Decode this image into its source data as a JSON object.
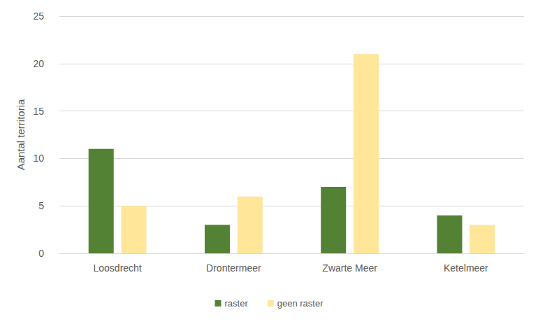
{
  "chart_data": {
    "type": "bar",
    "y_label": "Aantal territoria",
    "categories": [
      "Loosdrecht",
      "Drontermeer",
      "Zwarte Meer",
      "Ketelmeer"
    ],
    "series": [
      {
        "name": "raster",
        "color": "#548235",
        "values": [
          11,
          3,
          7,
          4
        ]
      },
      {
        "name": "geen raster",
        "color": "#FFE699",
        "values": [
          5,
          6,
          21,
          3
        ]
      }
    ],
    "ylim": [
      0,
      25
    ],
    "yticks": [
      0,
      5,
      10,
      15,
      20,
      25
    ],
    "grid": true,
    "legend": "bottom"
  }
}
